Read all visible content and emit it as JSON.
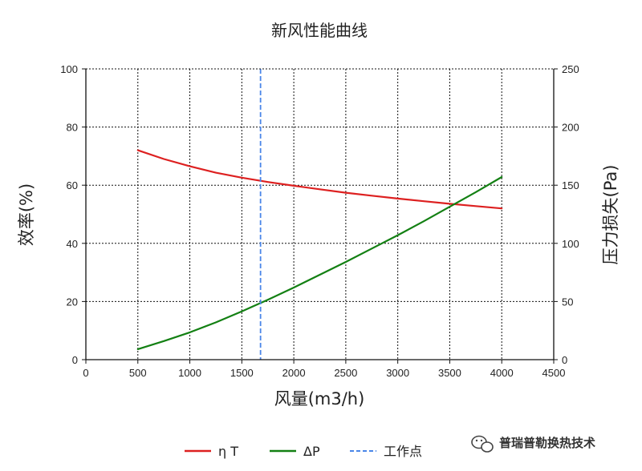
{
  "chart_data": {
    "type": "line",
    "title": "新风性能曲线",
    "xlabel": "风量(m3/h)",
    "ylabel_left": "效率(%)",
    "ylabel_right": "压力损失(Pa)",
    "xlim": [
      0,
      4500
    ],
    "ylim_left": [
      0,
      100
    ],
    "ylim_right": [
      0,
      250
    ],
    "x_ticks": [
      "0",
      "500",
      "1000",
      "1500",
      "2000",
      "2500",
      "3000",
      "3500",
      "4000",
      "4500"
    ],
    "y_left_ticks": [
      "0",
      "20",
      "40",
      "60",
      "80",
      "100"
    ],
    "y_right_ticks": [
      "0",
      "50",
      "100",
      "150",
      "200",
      "250"
    ],
    "grid": true,
    "legend_position": "bottom",
    "series": [
      {
        "name": "η T",
        "axis": "left",
        "color": "#dd2020",
        "x": [
          500,
          750,
          1000,
          1250,
          1500,
          1750,
          2000,
          2250,
          2500,
          2750,
          3000,
          3250,
          3500,
          3750,
          4000
        ],
        "y": [
          72,
          69,
          66.5,
          64.3,
          62.6,
          61.1,
          59.8,
          58.6,
          57.4,
          56.4,
          55.4,
          54.5,
          53.6,
          52.8,
          52
        ]
      },
      {
        "name": "ΔP",
        "axis": "right",
        "color": "#138013",
        "x": [
          500,
          750,
          1000,
          1250,
          1500,
          1750,
          2000,
          2250,
          2500,
          2750,
          3000,
          3250,
          3500,
          3750,
          4000
        ],
        "y": [
          9,
          16,
          23.5,
          32,
          41.5,
          51.5,
          62,
          73,
          84,
          95.5,
          107,
          119,
          131.5,
          144,
          157
        ]
      }
    ],
    "operating_point": {
      "name": "工作点",
      "x": 1680,
      "color": "#4a86e8",
      "style": "dashed"
    }
  },
  "watermark": {
    "icon": "wechat-icon",
    "text": "普瑞普勒换热技术"
  }
}
